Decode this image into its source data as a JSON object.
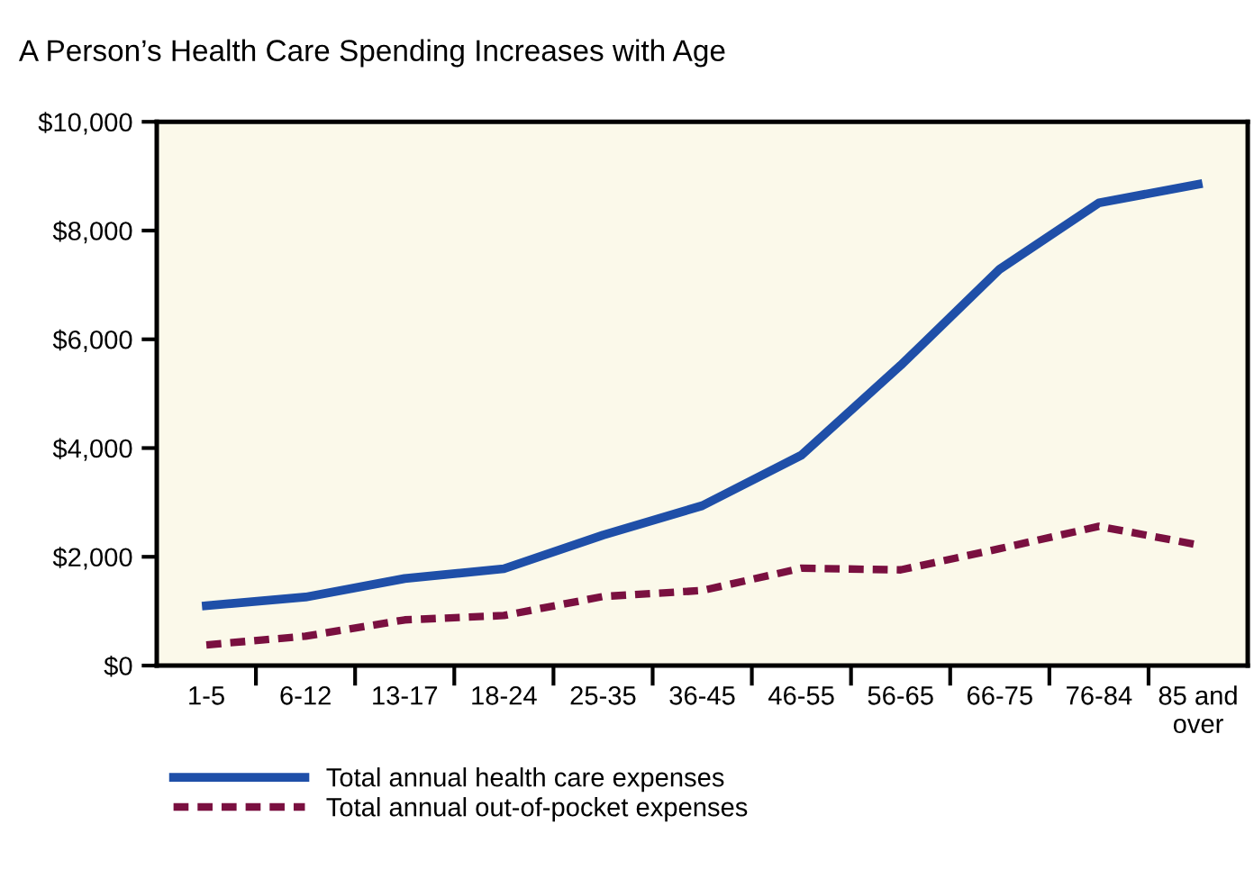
{
  "chart_data": {
    "type": "line",
    "title": "A Person’s Health Care Spending Increases with Age",
    "categories": [
      "1-5",
      "6-12",
      "13-17",
      "18-24",
      "25-35",
      "36-45",
      "46-55",
      "56-65",
      "66-75",
      "76-84",
      "85 and\nover"
    ],
    "series": [
      {
        "name": "Total annual health care expenses",
        "color": "#1f4fa8",
        "line_style": "solid",
        "values": [
          1100,
          1260,
          1600,
          1780,
          2400,
          2940,
          3870,
          5520,
          7290,
          8510,
          8850
        ]
      },
      {
        "name": "Total annual out-of-pocket expenses",
        "color": "#7a1040",
        "line_style": "dashed",
        "values": [
          380,
          540,
          840,
          920,
          1270,
          1380,
          1790,
          1760,
          2150,
          2560,
          2220
        ]
      }
    ],
    "ylim": [
      0,
      10000
    ],
    "yticks": [
      {
        "value": 0,
        "label": "$0"
      },
      {
        "value": 2000,
        "label": "$2,000"
      },
      {
        "value": 4000,
        "label": "$4,000"
      },
      {
        "value": 6000,
        "label": "$6,000"
      },
      {
        "value": 8000,
        "label": "$8,000"
      },
      {
        "value": 10000,
        "label": "$10,000"
      }
    ],
    "grid": false,
    "legend": "bottom",
    "marker": "none"
  }
}
